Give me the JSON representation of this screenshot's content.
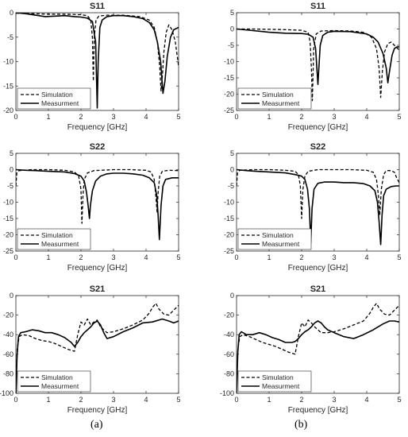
{
  "panel_labels": [
    "(a)",
    "(b)"
  ],
  "colors": {
    "simulation": "#000000",
    "measurement": "#000000",
    "axis": "#262626",
    "background": "#ffffff"
  },
  "chart_data": [
    {
      "type": "line",
      "title": "S11",
      "xlabel": "Frequency [GHz]",
      "ylabel": "",
      "xlim": [
        0,
        5
      ],
      "ylim": [
        -20,
        0
      ],
      "xticks": [
        "0",
        "1",
        "2",
        "3",
        "4",
        "5"
      ],
      "yticks": [
        "0",
        "-5",
        "-10",
        "-15",
        "-20"
      ],
      "legend": {
        "position": "bottom-left",
        "entries": [
          "Simulation",
          "Measurment"
        ]
      },
      "grid": false,
      "series": [
        {
          "name": "Simulation",
          "style": "dashed",
          "x": [
            0,
            0.5,
            1.0,
            1.5,
            2.0,
            2.2,
            2.3,
            2.35,
            2.38,
            2.41,
            2.46,
            2.55,
            2.8,
            3.3,
            3.8,
            4.1,
            4.25,
            4.35,
            4.42,
            4.46,
            4.5,
            4.55,
            4.62,
            4.7,
            4.8,
            4.9,
            5.0
          ],
          "y": [
            -0.1,
            -0.2,
            -0.3,
            -0.3,
            -0.4,
            -0.6,
            -1.5,
            -5,
            -14,
            -5,
            -1.5,
            -0.7,
            -0.5,
            -0.5,
            -0.8,
            -1.5,
            -3,
            -6,
            -11,
            -16,
            -13,
            -8,
            -4,
            -2.5,
            -3.5,
            -6,
            -11
          ]
        },
        {
          "name": "Measurment",
          "style": "solid",
          "x": [
            0,
            0.3,
            0.6,
            0.9,
            1.2,
            1.5,
            1.8,
            2.0,
            2.2,
            2.35,
            2.45,
            2.5,
            2.53,
            2.58,
            2.65,
            2.8,
            3.0,
            3.3,
            3.6,
            3.9,
            4.1,
            4.25,
            4.35,
            4.45,
            4.52,
            4.58,
            4.65,
            4.75,
            4.85,
            5.0
          ],
          "y": [
            0,
            -0.2,
            -0.5,
            -0.8,
            -0.7,
            -0.6,
            -0.8,
            -0.9,
            -1.1,
            -1.8,
            -6,
            -19.5,
            -10,
            -3,
            -1.5,
            -0.8,
            -0.6,
            -0.6,
            -0.8,
            -1.2,
            -2,
            -3.5,
            -6,
            -10,
            -16.5,
            -14,
            -9,
            -5,
            -3.5,
            -3
          ]
        }
      ]
    },
    {
      "type": "line",
      "title": "S11",
      "xlabel": "Frequency [GHz]",
      "ylabel": "",
      "xlim": [
        0,
        5
      ],
      "ylim": [
        -25,
        5
      ],
      "xticks": [
        "0",
        "1",
        "2",
        "3",
        "4",
        "5"
      ],
      "yticks": [
        "5",
        "0",
        "-5",
        "-10",
        "-15",
        "-20",
        "-25"
      ],
      "legend": {
        "position": "bottom-left",
        "entries": [
          "Simulation",
          "Measurment"
        ]
      },
      "grid": false,
      "series": [
        {
          "name": "Simulation",
          "style": "dashed",
          "x": [
            0,
            0.5,
            1.0,
            1.5,
            2.0,
            2.2,
            2.26,
            2.3,
            2.33,
            2.37,
            2.45,
            2.6,
            3.0,
            3.5,
            3.9,
            4.15,
            4.3,
            4.38,
            4.43,
            4.48,
            4.55,
            4.65,
            4.75,
            4.85,
            5.0
          ],
          "y": [
            0,
            0,
            -0.1,
            -0.2,
            -0.4,
            -1,
            -4,
            -12,
            -22,
            -6,
            -1.5,
            -0.6,
            -0.5,
            -0.6,
            -1,
            -2.5,
            -6,
            -12,
            -21,
            -13,
            -7,
            -4.5,
            -4,
            -5,
            -6.5
          ]
        },
        {
          "name": "Measurment",
          "style": "solid",
          "x": [
            0,
            0.5,
            1.0,
            1.5,
            2.0,
            2.2,
            2.35,
            2.43,
            2.5,
            2.57,
            2.65,
            2.8,
            3.0,
            3.5,
            4.0,
            4.2,
            4.35,
            4.5,
            4.6,
            4.65,
            4.7,
            4.78,
            4.85,
            4.93,
            5.0
          ],
          "y": [
            0,
            -0.5,
            -1,
            -1.3,
            -1.4,
            -1.6,
            -2.5,
            -6,
            -17,
            -5,
            -2,
            -1,
            -0.7,
            -0.8,
            -1.5,
            -2.5,
            -4,
            -7.5,
            -12,
            -16.5,
            -13,
            -8,
            -6,
            -5.5,
            -5.5
          ]
        }
      ]
    },
    {
      "type": "line",
      "title": "S22",
      "xlabel": "Frequency [GHz]",
      "ylabel": "",
      "xlim": [
        0,
        5
      ],
      "ylim": [
        -25,
        5
      ],
      "xticks": [
        "0",
        "1",
        "2",
        "3",
        "4",
        "5"
      ],
      "yticks": [
        "5",
        "0",
        "-5",
        "-10",
        "-15",
        "-20",
        "-25"
      ],
      "legend": {
        "position": "bottom-left",
        "entries": [
          "Simulation",
          "Measurment"
        ]
      },
      "grid": false,
      "series": [
        {
          "name": "Simulation",
          "style": "dashed",
          "x": [
            0,
            0.03,
            0.1,
            0.5,
            1.0,
            1.5,
            1.8,
            1.93,
            2.0,
            2.03,
            2.06,
            2.1,
            2.2,
            2.4,
            3.0,
            3.5,
            4.0,
            4.15,
            4.25,
            4.3,
            4.34,
            4.37,
            4.42,
            4.5,
            4.7,
            5.0
          ],
          "y": [
            -5,
            -1,
            -0.3,
            0,
            0,
            -0.2,
            -0.7,
            -2,
            -6,
            -16.5,
            -8,
            -3,
            -1,
            -0.3,
            0,
            0,
            -0.2,
            -0.7,
            -3,
            -8,
            -13,
            -7,
            -2,
            -0.5,
            -0.2,
            -0.3
          ]
        },
        {
          "name": "Measurment",
          "style": "solid",
          "x": [
            0,
            0.3,
            0.6,
            1.0,
            1.5,
            1.8,
            2.0,
            2.1,
            2.17,
            2.22,
            2.26,
            2.29,
            2.35,
            2.45,
            2.6,
            2.8,
            3.0,
            3.3,
            3.6,
            3.9,
            4.1,
            4.25,
            4.33,
            4.37,
            4.41,
            4.46,
            4.52,
            4.6,
            4.8,
            5.0
          ],
          "y": [
            0,
            -0.2,
            -0.3,
            -0.5,
            -0.7,
            -1.2,
            -2,
            -3.5,
            -7,
            -11,
            -15,
            -11,
            -6.5,
            -3.5,
            -2,
            -1.3,
            -1.1,
            -1.1,
            -1.3,
            -1.7,
            -2.5,
            -4,
            -8,
            -14,
            -21.5,
            -11,
            -5,
            -3,
            -2.5,
            -2.5
          ]
        }
      ]
    },
    {
      "type": "line",
      "title": "S22",
      "xlabel": "Frequency [GHz]",
      "ylabel": "",
      "xlim": [
        0,
        5
      ],
      "ylim": [
        -25,
        5
      ],
      "xticks": [
        "0",
        "1",
        "2",
        "3",
        "4",
        "5"
      ],
      "yticks": [
        "5",
        "0",
        "-5",
        "-10",
        "-15",
        "-20",
        "-25"
      ],
      "legend": {
        "position": "bottom-left",
        "entries": [
          "Simulation",
          "Measurment"
        ]
      },
      "grid": false,
      "series": [
        {
          "name": "Simulation",
          "style": "dashed",
          "x": [
            0,
            0.03,
            0.1,
            0.5,
            1.0,
            1.5,
            1.8,
            1.9,
            1.96,
            2.0,
            2.04,
            2.1,
            2.2,
            2.5,
            3.0,
            3.5,
            4.0,
            4.2,
            4.3,
            4.36,
            4.4,
            4.45,
            4.52,
            4.6,
            4.75,
            4.85,
            4.92,
            5.0
          ],
          "y": [
            -5,
            -1,
            -0.2,
            0,
            0,
            -0.2,
            -0.5,
            -1.5,
            -5,
            -15,
            -6,
            -2,
            -0.5,
            0,
            0,
            0,
            -0.2,
            -0.8,
            -3,
            -8,
            -14,
            -6,
            -1.5,
            -0.3,
            -0.3,
            -0.8,
            -2.5,
            -4
          ]
        },
        {
          "name": "Measurment",
          "style": "solid",
          "x": [
            0,
            0.3,
            0.6,
            1.0,
            1.5,
            1.8,
            2.0,
            2.1,
            2.18,
            2.24,
            2.28,
            2.32,
            2.38,
            2.5,
            2.7,
            3.0,
            3.3,
            3.6,
            3.9,
            4.1,
            4.25,
            4.33,
            4.38,
            4.43,
            4.47,
            4.52,
            4.6,
            4.75,
            4.9,
            5.0
          ],
          "y": [
            0,
            -0.3,
            -0.5,
            -0.7,
            -1,
            -1.5,
            -2,
            -3,
            -6,
            -12,
            -22.5,
            -12,
            -6,
            -4.2,
            -3.8,
            -3.8,
            -4,
            -4,
            -4.3,
            -5,
            -6.5,
            -10,
            -16,
            -23,
            -14,
            -8,
            -6,
            -5.2,
            -5,
            -5
          ]
        }
      ]
    },
    {
      "type": "line",
      "title": "S21",
      "xlabel": "Frequency [GHz]",
      "ylabel": "",
      "xlim": [
        0,
        5
      ],
      "ylim": [
        -100,
        0
      ],
      "xticks": [
        "0",
        "1",
        "2",
        "3",
        "4",
        "5"
      ],
      "yticks": [
        "0",
        "-20",
        "-40",
        "-60",
        "-80",
        "-100"
      ],
      "legend": {
        "position": "bottom-left",
        "entries": [
          "Simulation",
          "Measurment"
        ]
      },
      "grid": false,
      "series": [
        {
          "name": "Simulation",
          "style": "dashed",
          "x": [
            0,
            0.04,
            0.1,
            0.2,
            0.4,
            0.6,
            0.8,
            1.0,
            1.2,
            1.4,
            1.6,
            1.8,
            1.9,
            2.0,
            2.1,
            2.2,
            2.3,
            2.4,
            2.5,
            2.6,
            2.8,
            3.0,
            3.3,
            3.6,
            3.9,
            4.1,
            4.2,
            4.3,
            4.4,
            4.55,
            4.7,
            4.85,
            5.0
          ],
          "y": [
            -100,
            -55,
            -42,
            -40,
            -41,
            -44,
            -46,
            -47,
            -49,
            -52,
            -55,
            -57,
            -40,
            -27,
            -30,
            -24,
            -30,
            -27,
            -25,
            -32,
            -38,
            -37,
            -34,
            -30,
            -25,
            -18,
            -12,
            -8,
            -14,
            -19,
            -20,
            -15,
            -10
          ]
        },
        {
          "name": "Measurment",
          "style": "solid",
          "x": [
            0,
            0.04,
            0.08,
            0.15,
            0.3,
            0.5,
            0.7,
            0.9,
            1.1,
            1.3,
            1.5,
            1.7,
            1.8,
            1.9,
            2.0,
            2.1,
            2.2,
            2.3,
            2.4,
            2.5,
            2.6,
            2.7,
            2.8,
            3.0,
            3.3,
            3.6,
            3.9,
            4.2,
            4.5,
            4.7,
            4.85,
            5.0
          ],
          "y": [
            -100,
            -60,
            -42,
            -38,
            -37,
            -35,
            -36,
            -38,
            -38,
            -40,
            -43,
            -48,
            -52,
            -48,
            -42,
            -38,
            -35,
            -32,
            -28,
            -26,
            -30,
            -38,
            -44,
            -42,
            -37,
            -33,
            -28,
            -27,
            -24,
            -26,
            -28,
            -26
          ]
        }
      ]
    },
    {
      "type": "line",
      "title": "S21",
      "xlabel": "Frequency [GHz]",
      "ylabel": "",
      "xlim": [
        0,
        5
      ],
      "ylim": [
        -100,
        0
      ],
      "xticks": [
        "0",
        "1",
        "2",
        "3",
        "4",
        "5"
      ],
      "yticks": [
        "0",
        "-20",
        "-40",
        "-60",
        "-80",
        "-100"
      ],
      "legend": {
        "position": "bottom-left",
        "entries": [
          "Simulation",
          "Measurment"
        ]
      },
      "grid": false,
      "series": [
        {
          "name": "Simulation",
          "style": "dashed",
          "x": [
            0,
            0.04,
            0.1,
            0.2,
            0.4,
            0.6,
            0.8,
            1.0,
            1.2,
            1.4,
            1.6,
            1.8,
            1.9,
            2.0,
            2.1,
            2.2,
            2.3,
            2.4,
            2.5,
            2.6,
            2.8,
            3.0,
            3.3,
            3.6,
            3.9,
            4.1,
            4.2,
            4.3,
            4.4,
            4.55,
            4.7,
            4.85,
            5.0
          ],
          "y": [
            -95,
            -55,
            -42,
            -40,
            -42,
            -45,
            -48,
            -50,
            -52,
            -55,
            -58,
            -60,
            -42,
            -28,
            -32,
            -25,
            -28,
            -32,
            -35,
            -38,
            -38,
            -37,
            -34,
            -30,
            -26,
            -18,
            -12,
            -8,
            -14,
            -19,
            -20,
            -15,
            -10
          ]
        },
        {
          "name": "Measurment",
          "style": "solid",
          "x": [
            0,
            0.04,
            0.08,
            0.15,
            0.3,
            0.5,
            0.7,
            0.9,
            1.1,
            1.3,
            1.5,
            1.7,
            1.8,
            1.9,
            2.0,
            2.1,
            2.2,
            2.3,
            2.4,
            2.5,
            2.6,
            2.7,
            2.8,
            3.0,
            3.3,
            3.6,
            3.9,
            4.2,
            4.5,
            4.7,
            4.85,
            5.0
          ],
          "y": [
            -100,
            -58,
            -40,
            -37,
            -40,
            -40,
            -38,
            -40,
            -43,
            -45,
            -48,
            -48,
            -47,
            -44,
            -40,
            -37,
            -35,
            -32,
            -28,
            -26,
            -28,
            -32,
            -35,
            -38,
            -42,
            -44,
            -40,
            -35,
            -29,
            -26,
            -26,
            -27
          ]
        }
      ]
    }
  ]
}
